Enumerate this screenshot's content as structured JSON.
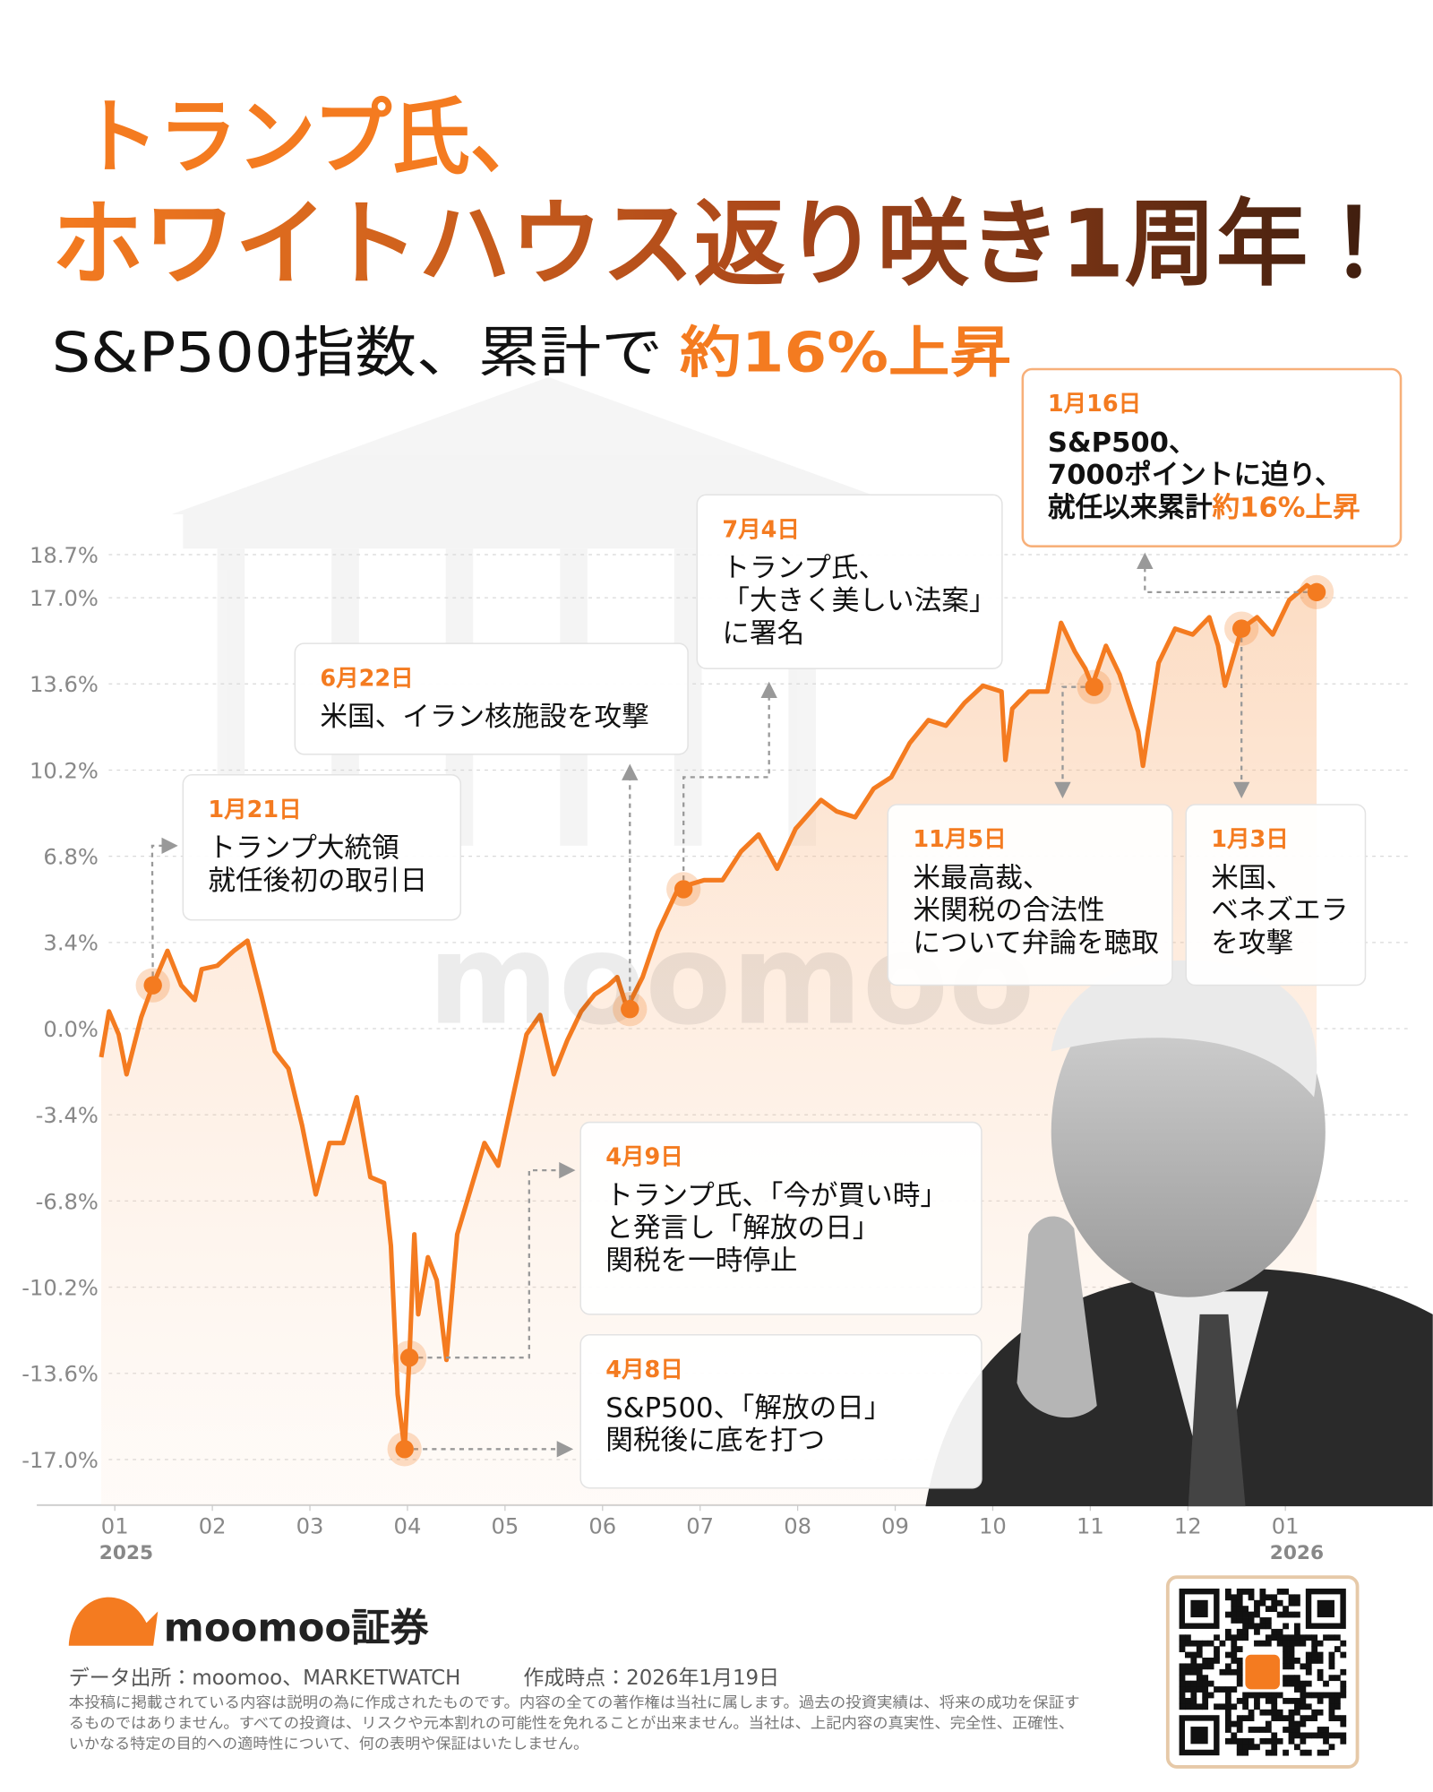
{
  "title": {
    "line1": "トランプ氏、",
    "line2": "ホワイトハウス返り咲き1周年！",
    "subtitle": "S&P500指数、累計で",
    "subtitle_highlight": "約16%上昇"
  },
  "chart_data": {
    "type": "line",
    "x": [
      0.86,
      0.94,
      1.04,
      1.12,
      1.27,
      1.39,
      1.54,
      1.68,
      1.82,
      1.89,
      2.05,
      2.22,
      2.36,
      2.5,
      2.64,
      2.78,
      2.92,
      3.06,
      3.2,
      3.34,
      3.48,
      3.62,
      3.76,
      3.83,
      3.9,
      3.97,
      4.02,
      4.07,
      4.11,
      4.21,
      4.3,
      4.4,
      4.51,
      4.65,
      4.79,
      4.93,
      5.08,
      5.22,
      5.36,
      5.5,
      5.64,
      5.78,
      5.92,
      6.06,
      6.15,
      6.25,
      6.41,
      6.57,
      6.76,
      6.85,
      7.04,
      7.23,
      7.42,
      7.6,
      7.79,
      7.98,
      8.24,
      8.4,
      8.59,
      8.78,
      8.96,
      9.15,
      9.34,
      9.52,
      9.71,
      9.9,
      10.09,
      10.13,
      10.2,
      10.37,
      10.56,
      10.7,
      10.84,
      10.95,
      11.02,
      11.16,
      11.3,
      11.49,
      11.54,
      11.7,
      11.87,
      12.05,
      12.22,
      12.31,
      12.38,
      12.55,
      12.71,
      12.87,
      13.04,
      13.22,
      13.32
    ],
    "series": [
      {
        "color": "#f47b20",
        "values": [
          -1.13,
          0.68,
          -0.23,
          -1.8,
          0.45,
          1.71,
          3.07,
          1.71,
          1.13,
          2.34,
          2.48,
          3.07,
          3.47,
          1.35,
          -0.9,
          -1.58,
          -3.83,
          -6.54,
          -4.51,
          -4.51,
          -2.71,
          -5.86,
          -6.09,
          -8.57,
          -14.43,
          -16.59,
          -12.98,
          -8.12,
          -11.27,
          -9.02,
          -9.92,
          -13.07,
          -8.12,
          -6.31,
          -4.51,
          -5.41,
          -2.71,
          -0.23,
          0.54,
          -1.8,
          -0.45,
          0.68,
          1.35,
          1.71,
          2.03,
          0.81,
          2.03,
          3.83,
          5.41,
          5.64,
          5.86,
          5.86,
          6.99,
          7.66,
          6.31,
          7.89,
          9.02,
          8.57,
          8.34,
          9.47,
          9.92,
          11.27,
          12.17,
          11.95,
          12.85,
          13.53,
          13.3,
          10.6,
          12.62,
          13.3,
          13.3,
          16.01,
          14.88,
          14.2,
          13.53,
          15.1,
          13.98,
          11.72,
          10.37,
          14.43,
          15.78,
          15.55,
          16.23,
          15.1,
          13.53,
          15.78,
          16.23,
          15.55,
          16.91,
          17.49,
          17.22
        ]
      }
    ],
    "xlim": [
      0.2,
      14.3
    ],
    "xticks": [
      {
        "value": 1,
        "label": "01"
      },
      {
        "value": 2,
        "label": "02"
      },
      {
        "value": 3,
        "label": "03"
      },
      {
        "value": 4,
        "label": "04"
      },
      {
        "value": 5,
        "label": "05"
      },
      {
        "value": 6,
        "label": "06"
      },
      {
        "value": 7,
        "label": "07"
      },
      {
        "value": 8,
        "label": "08"
      },
      {
        "value": 9,
        "label": "09"
      },
      {
        "value": 10,
        "label": "10"
      },
      {
        "value": 11,
        "label": "11"
      },
      {
        "value": 12,
        "label": "12"
      },
      {
        "value": 13,
        "label": "01"
      }
    ],
    "year_labels": [
      {
        "value": 1,
        "label": "2025"
      },
      {
        "value": 13,
        "label": "2026"
      }
    ],
    "ylim": [
      -18.8,
      20.4
    ],
    "yticks": [
      {
        "value": 18.7,
        "label": "18.7%"
      },
      {
        "value": 17.0,
        "label": "17.0%"
      },
      {
        "value": 13.6,
        "label": "13.6%"
      },
      {
        "value": 10.2,
        "label": "10.2%"
      },
      {
        "value": 6.8,
        "label": "6.8%"
      },
      {
        "value": 3.4,
        "label": "3.4%"
      },
      {
        "value": 0,
        "label": "0.0%"
      },
      {
        "value": -3.4,
        "label": "-3.4%"
      },
      {
        "value": -6.8,
        "label": "-6.8%"
      },
      {
        "value": -10.2,
        "label": "-10.2%"
      },
      {
        "value": -13.6,
        "label": "-13.6%"
      },
      {
        "value": -17.0,
        "label": "-17.0%"
      }
    ],
    "grid": true,
    "annotations": [
      {
        "date": "1月21日",
        "lines": [
          "トランプ大統領",
          "就任後初の取引日"
        ],
        "x": 1.39,
        "y": 1.71
      },
      {
        "date": "4月8日",
        "lines": [
          "S&P500、「解放の日」",
          "関税後に底を打つ"
        ],
        "x": 3.97,
        "y": -16.59
      },
      {
        "date": "4月9日",
        "lines": [
          "トランプ氏、「今が買い時」",
          "と発言し「解放の日」",
          "関税を一時停止"
        ],
        "x": 4.02,
        "y": -12.98
      },
      {
        "date": "6月22日",
        "lines": [
          "米国、イラン核施設を攻撃"
        ],
        "x": 6.28,
        "y": 0.77
      },
      {
        "date": "7月4日",
        "lines": [
          "トランプ氏、",
          "「大きく美しい法案」",
          "に署名"
        ],
        "x": 6.83,
        "y": 5.5
      },
      {
        "date": "11月5日",
        "lines": [
          "米最高裁、",
          "米関税の合法性",
          "について弁論を聴取"
        ],
        "x": 11.04,
        "y": 13.48
      },
      {
        "date": "1月3日",
        "lines": [
          "米国、",
          "ベネズエラ",
          "を攻撃"
        ],
        "x": 12.55,
        "y": 15.78
      },
      {
        "date": "1月16日",
        "lines": [
          "S&P500、",
          "7000ポイントに迫り、",
          "就任以来累計"
        ],
        "highlight": "約16%上昇",
        "x": 13.32,
        "y": 17.22
      }
    ]
  },
  "watermark": "moomoo",
  "footer": {
    "brand": "moomoo証券",
    "source": "データ出所：moomoo、MARKETWATCH",
    "created": "作成時点：2026年1月19日",
    "disclaimer": [
      "本投稿に掲載されている内容は説明の為に作成されたものです。内容の全ての著作権は当社に属します。過去の投資実績は、将来の成功を保証す",
      "るものではありません。すべての投資は、リスクや元本割れの可能性を免れることが出来ません。当社は、上記内容の真実性、完全性、正確性、",
      "いかなる特定の目的への適時性について、何の表明や保証はいたしません。"
    ]
  }
}
